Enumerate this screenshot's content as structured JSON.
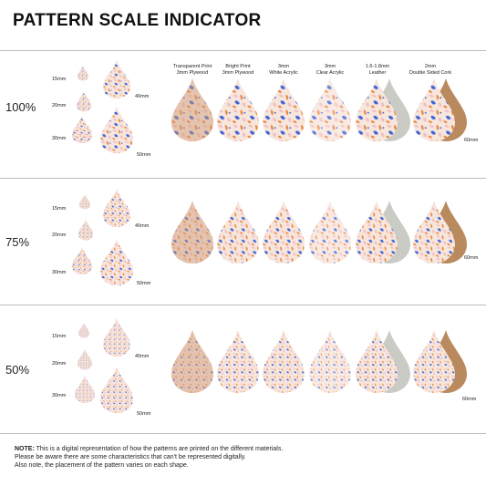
{
  "title": "PATTERN SCALE INDICATOR",
  "materials": [
    {
      "line1": "Transparent Print",
      "line2": "3mm Plywood"
    },
    {
      "line1": "Bright Print",
      "line2": "3mm Plywood"
    },
    {
      "line1": "3mm",
      "line2": "White Acrylic"
    },
    {
      "line1": "3mm",
      "line2": "Clear Acrylic"
    },
    {
      "line1": "1.6-1.8mm",
      "line2": "Leather"
    },
    {
      "line1": "2mm",
      "line2": "Double Sided Cork"
    }
  ],
  "rows": [
    {
      "scale": "100%",
      "sizes": [
        "15mm",
        "20mm",
        "30mm",
        "40mm",
        "50mm",
        "60mm"
      ]
    },
    {
      "scale": "75%",
      "sizes": [
        "15mm",
        "20mm",
        "30mm",
        "40mm",
        "50mm",
        "60mm"
      ]
    },
    {
      "scale": "50%",
      "sizes": [
        "15mm",
        "20mm",
        "30mm",
        "40mm",
        "50mm",
        "60mm"
      ]
    }
  ],
  "note": {
    "label": "NOTE:",
    "line1": " This is a digital representation of how the patterns are printed on the different materials.",
    "line2": "Please be aware there are some characteristics that can't be represented digitally.",
    "line3": "Also note, the placement of the pattern varies on each shape."
  },
  "colors": {
    "orange": "#e8833a",
    "blue": "#3f63d6",
    "pink": "#f2bfc4",
    "cream": "#f7e6dc",
    "plywood": "#cf9b77",
    "leather": "#c9cbc4",
    "cork": "#b98a5e"
  }
}
